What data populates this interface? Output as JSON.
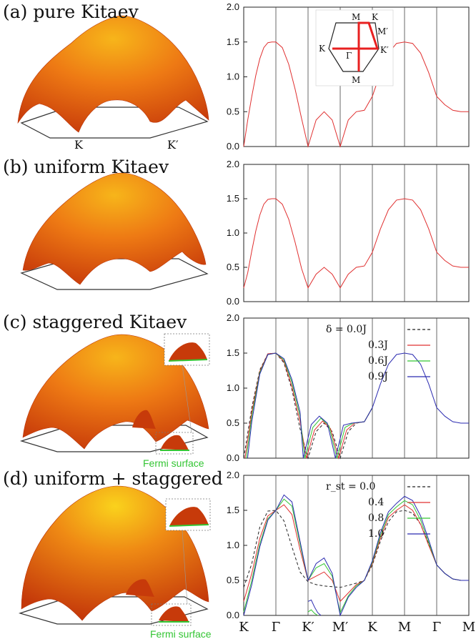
{
  "panels": [
    {
      "label": "(a) pure Kitaev",
      "surface_labels": [
        "K",
        "K′"
      ]
    },
    {
      "label": "(b) uniform Kitaev"
    },
    {
      "label": "(c) staggered Kitaev",
      "fermi_label": "Fermi surface"
    },
    {
      "label": "(d) uniform + staggered",
      "fermi_label": "Fermi surface"
    }
  ],
  "inset": {
    "labels": [
      "M",
      "K",
      "M′",
      "K",
      "Γ",
      "K′",
      "M"
    ]
  },
  "chart_data": [
    {
      "type": "line",
      "ylim": [
        0,
        2.0
      ],
      "yticks": [
        "0.0",
        "0.5",
        "1.0",
        "1.5",
        "2.0"
      ],
      "path_ticks": [
        "K",
        "Γ",
        "K′",
        "M′",
        "K",
        "M",
        "Γ",
        "M"
      ],
      "series": [
        {
          "color": "#e03030",
          "dash": "solid",
          "x": [
            0,
            0.125,
            0.25,
            0.375,
            0.5,
            0.625,
            0.75,
            0.875,
            1,
            1.2,
            1.4,
            1.6,
            1.8,
            2,
            2.25,
            2.5,
            2.75,
            3,
            3.25,
            3.5,
            3.75,
            4,
            4.25,
            4.5,
            4.75,
            5,
            5.25,
            5.5,
            5.75,
            6,
            6.25,
            6.5,
            6.75,
            7
          ],
          "y": [
            0,
            0.38,
            0.72,
            1.02,
            1.26,
            1.42,
            1.49,
            1.5,
            1.5,
            1.42,
            1.18,
            0.82,
            0.4,
            0,
            0.38,
            0.5,
            0.38,
            0,
            0.38,
            0.5,
            0.52,
            0.72,
            1.06,
            1.34,
            1.48,
            1.5,
            1.48,
            1.34,
            1.06,
            0.72,
            0.6,
            0.52,
            0.5,
            0.5
          ]
        }
      ]
    },
    {
      "type": "line",
      "ylim": [
        0,
        2.0
      ],
      "yticks": [
        "0.0",
        "0.5",
        "1.0",
        "1.5",
        "2.0"
      ],
      "path_ticks": [
        "K",
        "Γ",
        "K′",
        "M′",
        "K",
        "M",
        "Γ",
        "M"
      ],
      "series": [
        {
          "color": "#e03030",
          "dash": "solid",
          "x": [
            0,
            0.125,
            0.25,
            0.375,
            0.5,
            0.625,
            0.75,
            0.875,
            1,
            1.2,
            1.4,
            1.6,
            1.8,
            2,
            2.25,
            2.5,
            2.75,
            3,
            3.25,
            3.5,
            3.75,
            4,
            4.25,
            4.5,
            4.75,
            5,
            5.25,
            5.5,
            5.75,
            6,
            6.25,
            6.5,
            6.75,
            7
          ],
          "y": [
            0.2,
            0.42,
            0.74,
            1.03,
            1.26,
            1.42,
            1.49,
            1.5,
            1.5,
            1.42,
            1.2,
            0.86,
            0.48,
            0.2,
            0.4,
            0.5,
            0.4,
            0.2,
            0.4,
            0.5,
            0.52,
            0.72,
            1.06,
            1.34,
            1.48,
            1.5,
            1.48,
            1.34,
            1.06,
            0.72,
            0.6,
            0.52,
            0.5,
            0.5
          ]
        }
      ]
    },
    {
      "type": "line",
      "ylim": [
        0,
        2.0
      ],
      "yticks": [
        "0.0",
        "0.5",
        "1.0",
        "1.5",
        "2.0"
      ],
      "path_ticks": [
        "K",
        "Γ",
        "K′",
        "M′",
        "K",
        "M",
        "Γ",
        "M"
      ],
      "legend": {
        "header": "δ = 0.0J",
        "entries": [
          "0.3J",
          "0.6J",
          "0.9J"
        ]
      },
      "series": [
        {
          "name": "δ = 0.0J",
          "color": "#222222",
          "dash": "dashed",
          "x": [
            0,
            0.25,
            0.5,
            0.75,
            1,
            1.25,
            1.5,
            1.75,
            2,
            2.25,
            2.5,
            2.75,
            3,
            3.25,
            3.5,
            3.75,
            4
          ],
          "y": [
            0,
            0.72,
            1.26,
            1.49,
            1.5,
            1.36,
            0.98,
            0.42,
            0,
            0.38,
            0.5,
            0.38,
            0,
            0.38,
            0.5,
            0.52,
            0.72
          ]
        },
        {
          "name": "0.3J",
          "color": "#e03030",
          "dash": "solid",
          "x": [
            0.04,
            0.25,
            0.5,
            0.75,
            1,
            1.25,
            1.5,
            1.75,
            1.95,
            2.2,
            2.45,
            2.7,
            2.95,
            3.2,
            3.45,
            3.75,
            4
          ],
          "y": [
            0,
            0.66,
            1.24,
            1.49,
            1.5,
            1.38,
            1.02,
            0.52,
            0,
            0.4,
            0.53,
            0.42,
            0,
            0.4,
            0.5,
            0.52,
            0.72
          ]
        },
        {
          "name": "0.6J",
          "color": "#33c533",
          "dash": "solid",
          "x": [
            0.08,
            0.25,
            0.5,
            0.75,
            1,
            1.25,
            1.5,
            1.75,
            1.9,
            2.15,
            2.4,
            2.65,
            2.9,
            3.15,
            3.4,
            3.75,
            4
          ],
          "y": [
            0,
            0.6,
            1.22,
            1.48,
            1.5,
            1.4,
            1.08,
            0.6,
            0,
            0.44,
            0.57,
            0.46,
            0,
            0.44,
            0.5,
            0.52,
            0.72
          ]
        },
        {
          "name": "0.9J",
          "color": "#2a2ab0",
          "dash": "solid",
          "x": [
            0.12,
            0.25,
            0.5,
            0.75,
            1,
            1.25,
            1.5,
            1.75,
            1.85,
            2.1,
            2.35,
            2.6,
            2.85,
            3.1,
            3.35,
            3.75,
            4,
            4.25,
            4.5,
            4.75,
            5,
            5.25,
            5.5,
            5.75,
            6,
            6.25,
            6.5,
            6.75,
            7
          ],
          "y": [
            0,
            0.52,
            1.2,
            1.48,
            1.5,
            1.42,
            1.12,
            0.66,
            0,
            0.48,
            0.6,
            0.5,
            0,
            0.47,
            0.5,
            0.52,
            0.72,
            1.06,
            1.34,
            1.48,
            1.5,
            1.48,
            1.34,
            1.06,
            0.72,
            0.6,
            0.52,
            0.5,
            0.5
          ]
        }
      ]
    },
    {
      "type": "line",
      "ylim": [
        0,
        2.0
      ],
      "yticks": [
        "0.0",
        "0.5",
        "1.0",
        "1.5",
        "2.0"
      ],
      "path_ticks": [
        "K",
        "Γ",
        "K′",
        "M′",
        "K",
        "M",
        "Γ",
        "M"
      ],
      "legend": {
        "header": "r_st = 0.0",
        "entries": [
          "0.4",
          "0.8",
          "1.0"
        ]
      },
      "series": [
        {
          "name": "r_st = 0.0",
          "color": "#222222",
          "dash": "dashed",
          "x": [
            0,
            0.25,
            0.5,
            0.75,
            1,
            1.25,
            1.5,
            1.75,
            2,
            2.25,
            2.5,
            2.75,
            3,
            3.25,
            3.5,
            3.75,
            4,
            4.25,
            4.5,
            4.75,
            5,
            5.25,
            5.5,
            5.75,
            6,
            6.25,
            6.5,
            6.75,
            7
          ],
          "y": [
            0.4,
            0.74,
            1.26,
            1.49,
            1.5,
            1.35,
            0.98,
            0.62,
            0.48,
            0.44,
            0.42,
            0.41,
            0.4,
            0.43,
            0.46,
            0.5,
            0.72,
            1.06,
            1.34,
            1.48,
            1.5,
            1.46,
            1.3,
            1.02,
            0.72,
            0.6,
            0.52,
            0.5,
            0.5
          ]
        },
        {
          "name": "0.4",
          "color": "#e03030",
          "dash": "solid",
          "x": [
            0,
            0.25,
            0.5,
            0.75,
            1,
            1.25,
            1.5,
            1.75,
            2,
            2.25,
            2.5,
            2.75,
            3,
            3.25,
            3.5,
            3.75,
            4,
            4.25,
            4.5,
            4.75,
            5,
            5.25,
            5.5,
            5.75,
            6,
            6.25,
            6.5,
            6.75,
            7
          ],
          "y": [
            0.2,
            0.6,
            1.1,
            1.42,
            1.5,
            1.58,
            1.44,
            0.94,
            0.5,
            0.56,
            0.62,
            0.5,
            0.2,
            0.32,
            0.44,
            0.5,
            0.74,
            1.1,
            1.4,
            1.5,
            1.58,
            1.5,
            1.3,
            1.0,
            0.72,
            0.6,
            0.52,
            0.5,
            0.5
          ]
        },
        {
          "name": "0.8",
          "color": "#33c533",
          "dash": "solid",
          "x": [
            0,
            0.25,
            0.5,
            0.75,
            1,
            1.25,
            1.5,
            1.75,
            2,
            2.25,
            2.5,
            2.75,
            3,
            3.25,
            3.5,
            3.75,
            4,
            4.25,
            4.5,
            4.75,
            5,
            5.25,
            5.5,
            5.75,
            6,
            6.25,
            6.5,
            6.75,
            7
          ],
          "y": [
            0.05,
            0.5,
            1.02,
            1.38,
            1.5,
            1.66,
            1.56,
            1.02,
            0.5,
            0.68,
            0.74,
            0.56,
            0.04,
            0.28,
            0.42,
            0.5,
            0.76,
            1.14,
            1.44,
            1.55,
            1.64,
            1.58,
            1.36,
            1.04,
            0.72,
            0.6,
            0.52,
            0.5,
            0.5
          ]
        },
        {
          "name": "1.0",
          "color": "#2a2ab0",
          "dash": "solid",
          "x": [
            0,
            0.25,
            0.5,
            0.75,
            1,
            1.25,
            1.5,
            1.75,
            2,
            2.25,
            2.5,
            2.75,
            3,
            3.25,
            3.5,
            3.75,
            4,
            4.25,
            4.5,
            4.75,
            5,
            5.25,
            5.5,
            5.75,
            6,
            6.25,
            6.5,
            6.75,
            7
          ],
          "y": [
            0,
            0.44,
            0.98,
            1.36,
            1.5,
            1.72,
            1.62,
            1.06,
            0.5,
            0.74,
            0.82,
            0.6,
            0,
            0.26,
            0.4,
            0.5,
            0.78,
            1.18,
            1.48,
            1.6,
            1.7,
            1.64,
            1.42,
            1.08,
            0.72,
            0.6,
            0.52,
            0.5,
            0.5
          ]
        },
        {
          "color": "#2a2ab0",
          "dash": "solid",
          "x": [
            2,
            2.1,
            2.2,
            2.3,
            2.4
          ],
          "y": [
            0.2,
            0.22,
            0.12,
            0.04,
            0
          ]
        },
        {
          "color": "#33c533",
          "dash": "solid",
          "x": [
            2,
            2.1,
            2.2,
            2.3
          ],
          "y": [
            0.05,
            0.08,
            0.03,
            0
          ]
        }
      ]
    }
  ]
}
